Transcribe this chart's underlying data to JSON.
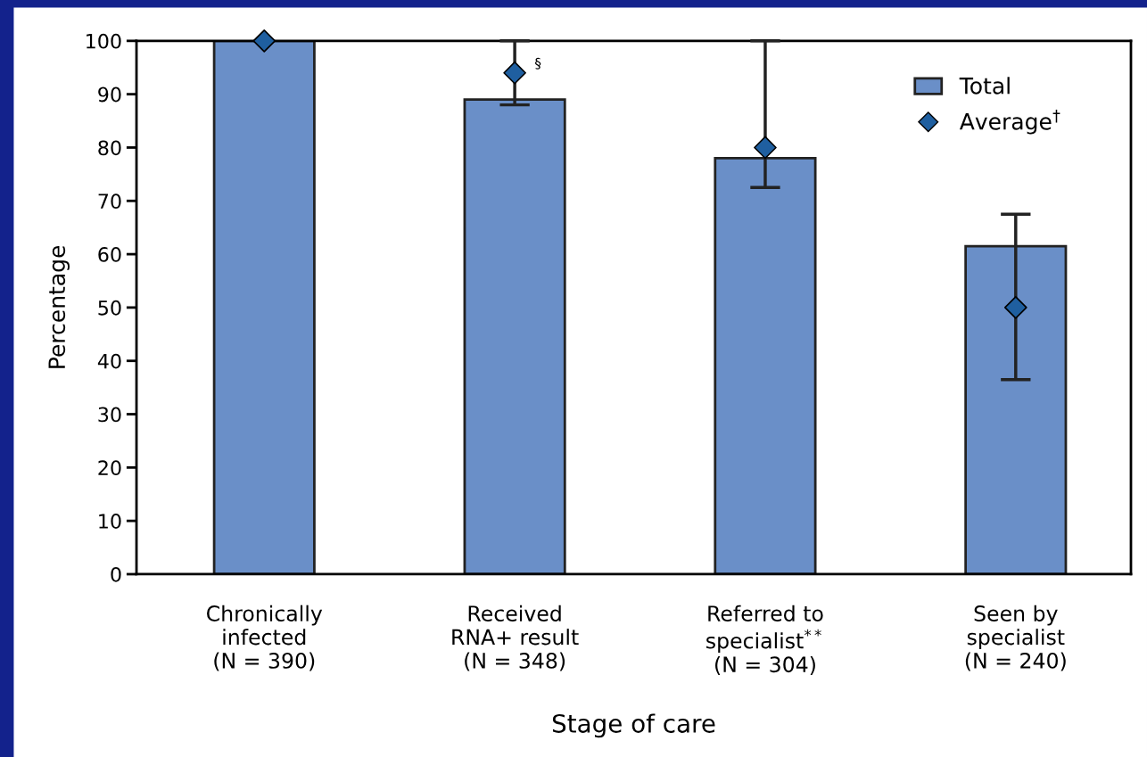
{
  "chart_data": {
    "type": "bar",
    "xlabel": "Stage of care",
    "ylabel": "Percentage",
    "categories": [
      "Chronically\ninfected\n(N = 390)",
      "Received\nRNA+ result\n(N = 348)",
      "Referred to\nspecialist$^{**}$\n(N = 304)",
      "Seen by\nspecialist\n(N = 240)"
    ],
    "series": [
      {
        "name": "Total",
        "color": "#6a8fc8",
        "values": [
          100,
          89,
          78,
          61.5
        ]
      },
      {
        "name": "Average$^{†}$",
        "type": "scatter",
        "color": "#1f5fa0",
        "values": [
          100,
          94,
          80,
          50
        ],
        "errors": [
          null,
          [
            88,
            100
          ],
          [
            72.5,
            100
          ],
          [
            36.5,
            67.5
          ]
        ]
      }
    ],
    "annotations": [
      {
        "text": "§",
        "x": "Received\nRNA+ result\n(N = 348)",
        "y": 94
      }
    ],
    "ylim": [
      0,
      100
    ],
    "yticks": [
      0,
      10,
      20,
      30,
      40,
      50,
      60,
      70,
      80,
      90,
      100
    ],
    "grid": false,
    "legend": "top right",
    "marker": "diamond"
  }
}
